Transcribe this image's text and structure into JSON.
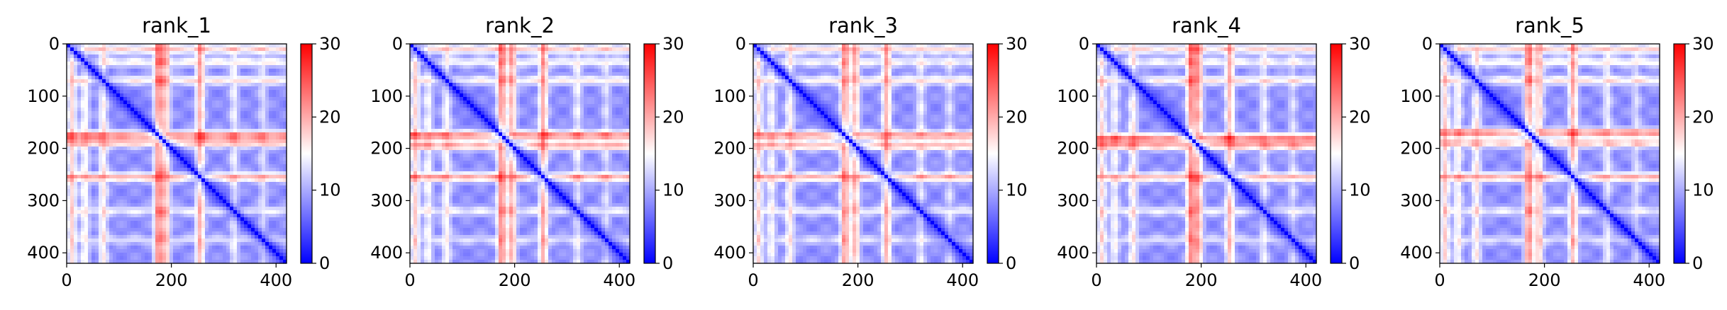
{
  "chart_data": [
    {
      "type": "heatmap",
      "title": "rank_1",
      "x_ticks": [
        "0",
        "200",
        "400"
      ],
      "y_ticks": [
        "0",
        "100",
        "200",
        "300",
        "400"
      ],
      "xlim": [
        0,
        420
      ],
      "ylim": [
        420,
        0
      ],
      "colorbar": {
        "min": 0,
        "max": 30,
        "ticks": [
          "0",
          "10",
          "20",
          "30"
        ],
        "colormap": "bwr"
      },
      "stripes": [
        {
          "pos": 10,
          "strength": 0.7
        },
        {
          "pos": 35,
          "strength": 0.55
        },
        {
          "pos": 70,
          "strength": 0.6
        },
        {
          "pos": 175,
          "strength": 1.0
        },
        {
          "pos": 190,
          "strength": 0.75
        },
        {
          "pos": 255,
          "strength": 0.85
        },
        {
          "pos": 320,
          "strength": 0.45
        },
        {
          "pos": 375,
          "strength": 0.35
        }
      ]
    },
    {
      "type": "heatmap",
      "title": "rank_2",
      "x_ticks": [
        "0",
        "200",
        "400"
      ],
      "y_ticks": [
        "0",
        "100",
        "200",
        "300",
        "400"
      ],
      "xlim": [
        0,
        420
      ],
      "ylim": [
        420,
        0
      ],
      "colorbar": {
        "min": 0,
        "max": 30,
        "ticks": [
          "0",
          "10",
          "20",
          "30"
        ],
        "colormap": "bwr"
      },
      "stripes": [
        {
          "pos": 10,
          "strength": 0.7
        },
        {
          "pos": 35,
          "strength": 0.5
        },
        {
          "pos": 70,
          "strength": 0.55
        },
        {
          "pos": 175,
          "strength": 1.05
        },
        {
          "pos": 195,
          "strength": 0.85
        },
        {
          "pos": 255,
          "strength": 0.9
        },
        {
          "pos": 320,
          "strength": 0.45
        },
        {
          "pos": 375,
          "strength": 0.35
        }
      ]
    },
    {
      "type": "heatmap",
      "title": "rank_3",
      "x_ticks": [
        "0",
        "200",
        "400"
      ],
      "y_ticks": [
        "0",
        "100",
        "200",
        "300",
        "400"
      ],
      "xlim": [
        0,
        420
      ],
      "ylim": [
        420,
        0
      ],
      "colorbar": {
        "min": 0,
        "max": 30,
        "ticks": [
          "0",
          "10",
          "20",
          "30"
        ],
        "colormap": "bwr"
      },
      "stripes": [
        {
          "pos": 10,
          "strength": 0.65
        },
        {
          "pos": 35,
          "strength": 0.5
        },
        {
          "pos": 70,
          "strength": 0.6
        },
        {
          "pos": 175,
          "strength": 0.95
        },
        {
          "pos": 195,
          "strength": 0.8
        },
        {
          "pos": 255,
          "strength": 0.85
        },
        {
          "pos": 320,
          "strength": 0.45
        },
        {
          "pos": 375,
          "strength": 0.35
        }
      ]
    },
    {
      "type": "heatmap",
      "title": "rank_4",
      "x_ticks": [
        "0",
        "200",
        "400"
      ],
      "y_ticks": [
        "0",
        "100",
        "200",
        "300",
        "400"
      ],
      "xlim": [
        0,
        420
      ],
      "ylim": [
        420,
        0
      ],
      "colorbar": {
        "min": 0,
        "max": 30,
        "ticks": [
          "0",
          "10",
          "20",
          "30"
        ],
        "colormap": "bwr"
      },
      "stripes": [
        {
          "pos": 10,
          "strength": 0.65
        },
        {
          "pos": 35,
          "strength": 0.5
        },
        {
          "pos": 70,
          "strength": 0.6
        },
        {
          "pos": 180,
          "strength": 1.0
        },
        {
          "pos": 195,
          "strength": 0.85
        },
        {
          "pos": 255,
          "strength": 0.8
        },
        {
          "pos": 320,
          "strength": 0.45
        },
        {
          "pos": 375,
          "strength": 0.35
        }
      ]
    },
    {
      "type": "heatmap",
      "title": "rank_5",
      "x_ticks": [
        "0",
        "200",
        "400"
      ],
      "y_ticks": [
        "0",
        "100",
        "200",
        "300",
        "400"
      ],
      "xlim": [
        0,
        420
      ],
      "ylim": [
        420,
        0
      ],
      "colorbar": {
        "min": 0,
        "max": 30,
        "ticks": [
          "0",
          "10",
          "20",
          "30"
        ],
        "colormap": "bwr"
      },
      "stripes": [
        {
          "pos": 10,
          "strength": 0.7
        },
        {
          "pos": 35,
          "strength": 0.55
        },
        {
          "pos": 70,
          "strength": 0.6
        },
        {
          "pos": 170,
          "strength": 1.0
        },
        {
          "pos": 190,
          "strength": 0.75
        },
        {
          "pos": 255,
          "strength": 0.85
        },
        {
          "pos": 320,
          "strength": 0.45
        },
        {
          "pos": 375,
          "strength": 0.35
        }
      ]
    }
  ],
  "colors": {
    "low": "#0000ff",
    "mid": "#ffffff",
    "high": "#ff0000"
  }
}
